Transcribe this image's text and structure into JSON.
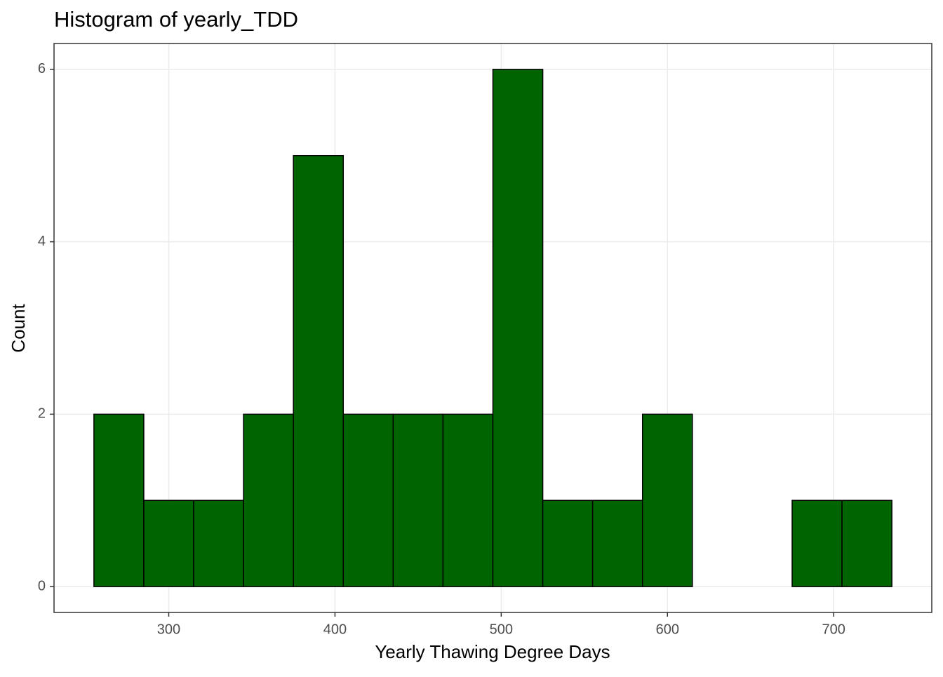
{
  "chart_data": {
    "type": "histogram",
    "title": "Histogram of yearly_TDD",
    "x_label": "Yearly Thawing Degree Days",
    "y_label": "Count",
    "bins": [
      255,
      285,
      315,
      345,
      375,
      405,
      435,
      465,
      495,
      525,
      555,
      585,
      615,
      645,
      675,
      705,
      735
    ],
    "values": [
      2,
      1,
      1,
      2,
      5,
      2,
      2,
      2,
      6,
      1,
      1,
      2,
      0,
      0,
      1,
      1
    ],
    "color": "#006400",
    "edge_color": "#000000",
    "xlim": [
      231,
      759
    ],
    "xticks": [
      300,
      400,
      500,
      600,
      700
    ],
    "ylim": [
      -0.3,
      6.3
    ],
    "yticks": [
      0,
      2,
      4,
      6
    ],
    "grid": true
  }
}
